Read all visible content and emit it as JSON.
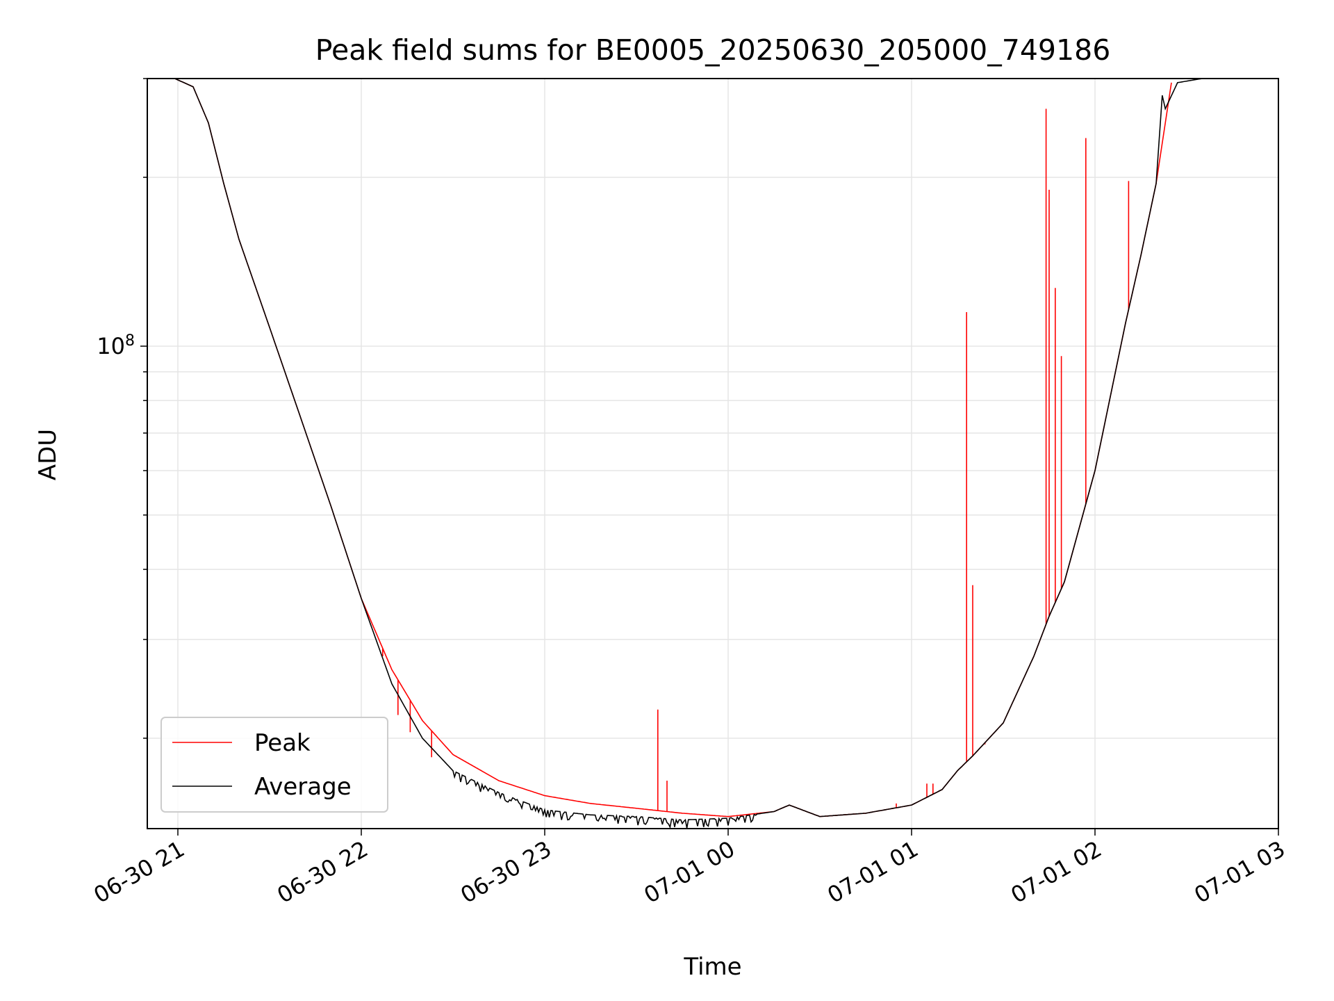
{
  "chart_data": {
    "type": "line",
    "title": "Peak field sums for BE0005_20250630_205000_749186",
    "xlabel": "Time",
    "ylabel": "ADU",
    "yscale": "log",
    "ylim": [
      13800000,
      300000000
    ],
    "xlim": [
      "2025-06-30 20:50",
      "2025-07-01 03:00"
    ],
    "x_ticks": [
      "06-30 21",
      "06-30 22",
      "06-30 23",
      "07-01 00",
      "07-01 01",
      "07-01 02",
      "07-01 03"
    ],
    "y_ticks": [
      {
        "value": 100000000,
        "base": "10",
        "exponent": "8"
      }
    ],
    "grid": true,
    "legend": "lower-left",
    "series": [
      {
        "name": "Peak",
        "color": "#ff0000",
        "x": [
          "2025-06-30 20:59",
          "2025-06-30 21:05",
          "2025-06-30 21:10",
          "2025-06-30 21:15",
          "2025-06-30 21:20",
          "2025-06-30 21:30",
          "2025-06-30 21:40",
          "2025-06-30 21:50",
          "2025-06-30 22:00",
          "2025-06-30 22:10",
          "2025-06-30 22:20",
          "2025-06-30 22:30",
          "2025-06-30 22:45",
          "2025-06-30 23:00",
          "2025-06-30 23:15",
          "2025-06-30 23:30",
          "2025-06-30 23:45",
          "2025-07-01 00:00",
          "2025-07-01 00:15",
          "2025-07-01 00:20",
          "2025-07-01 00:30",
          "2025-07-01 00:45",
          "2025-07-01 01:00",
          "2025-07-01 01:10",
          "2025-07-01 01:15",
          "2025-07-01 01:20",
          "2025-07-01 01:30",
          "2025-07-01 01:40",
          "2025-07-01 01:45",
          "2025-07-01 01:50",
          "2025-07-01 02:00",
          "2025-07-01 02:10",
          "2025-07-01 02:15",
          "2025-07-01 02:20",
          "2025-07-01 02:25"
        ],
        "y": [
          300000000,
          290000000,
          250000000,
          195000000,
          155000000,
          108000000,
          75000000,
          52000000,
          35500000,
          26500000,
          21500000,
          18700000,
          16800000,
          15800000,
          15300000,
          15000000,
          14700000,
          14500000,
          14800000,
          15200000,
          14500000,
          14700000,
          15200000,
          16200000,
          17500000,
          18600000,
          21300000,
          28000000,
          33000000,
          38000000,
          60000000,
          110000000,
          145000000,
          195000000,
          295000000
        ],
        "spikes": [
          {
            "x": "2025-06-30 22:07",
            "y": 28000000
          },
          {
            "x": "2025-06-30 22:12",
            "y": 22000000
          },
          {
            "x": "2025-06-30 22:16",
            "y": 20500000
          },
          {
            "x": "2025-06-30 22:23",
            "y": 18500000
          },
          {
            "x": "2025-06-30 23:37",
            "y": 22500000
          },
          {
            "x": "2025-06-30 23:40",
            "y": 16800000
          },
          {
            "x": "2025-07-01 00:55",
            "y": 15300000
          },
          {
            "x": "2025-07-01 01:05",
            "y": 16600000
          },
          {
            "x": "2025-07-01 01:07",
            "y": 16600000
          },
          {
            "x": "2025-07-01 01:18",
            "y": 115000000
          },
          {
            "x": "2025-07-01 01:20",
            "y": 37500000
          },
          {
            "x": "2025-07-01 01:24",
            "y": 19500000
          },
          {
            "x": "2025-07-01 01:44",
            "y": 265000000
          },
          {
            "x": "2025-07-01 01:45",
            "y": 190000000
          },
          {
            "x": "2025-07-01 01:47",
            "y": 127000000
          },
          {
            "x": "2025-07-01 01:49",
            "y": 96000000
          },
          {
            "x": "2025-07-01 01:57",
            "y": 235000000
          },
          {
            "x": "2025-07-01 02:11",
            "y": 197000000
          }
        ]
      },
      {
        "name": "Average",
        "color": "#000000",
        "x": [
          "2025-06-30 20:59",
          "2025-06-30 21:05",
          "2025-06-30 21:10",
          "2025-06-30 21:15",
          "2025-06-30 21:20",
          "2025-06-30 21:30",
          "2025-06-30 21:40",
          "2025-06-30 21:50",
          "2025-06-30 22:00",
          "2025-06-30 22:10",
          "2025-06-30 22:20",
          "2025-06-30 22:30",
          "2025-06-30 22:45",
          "2025-06-30 23:00",
          "2025-06-30 23:15",
          "2025-06-30 23:30",
          "2025-06-30 23:45",
          "2025-07-01 00:00",
          "2025-07-01 00:15",
          "2025-07-01 00:20",
          "2025-07-01 00:30",
          "2025-07-01 00:45",
          "2025-07-01 01:00",
          "2025-07-01 01:10",
          "2025-07-01 01:15",
          "2025-07-01 01:20",
          "2025-07-01 01:30",
          "2025-07-01 01:40",
          "2025-07-01 01:45",
          "2025-07-01 01:50",
          "2025-07-01 02:00",
          "2025-07-01 02:10",
          "2025-07-01 02:15",
          "2025-07-01 02:20",
          "2025-07-01 02:22",
          "2025-07-01 02:23",
          "2025-07-01 02:27",
          "2025-07-01 02:35"
        ],
        "y": [
          300000000,
          290000000,
          250000000,
          195000000,
          155000000,
          108000000,
          75000000,
          52000000,
          35500000,
          25000000,
          20000000,
          17500000,
          16000000,
          14900000,
          14600000,
          14500000,
          14300000,
          14400000,
          14800000,
          15200000,
          14500000,
          14700000,
          15200000,
          16200000,
          17500000,
          18600000,
          21300000,
          28000000,
          33000000,
          38000000,
          60000000,
          110000000,
          145000000,
          195000000,
          280000000,
          265000000,
          295000000,
          300000000
        ],
        "noise_range": [
          "2025-06-30 22:30",
          "2025-07-01 00:10"
        ]
      }
    ]
  }
}
